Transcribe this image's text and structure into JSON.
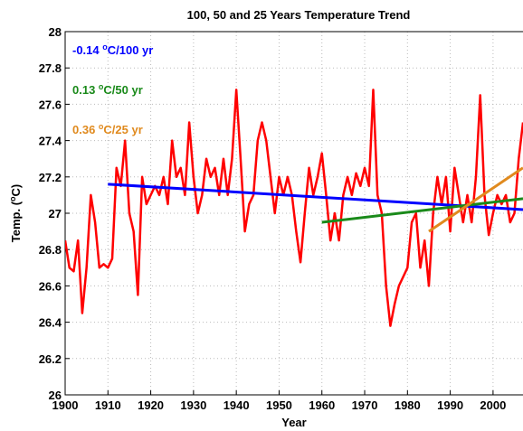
{
  "chart_data": {
    "type": "line",
    "title": "100, 50 and 25 Years Temperature Trend",
    "xlabel": "Year",
    "ylabel": {
      "pre": "Temp. (",
      "sup": "o",
      "post": "C)"
    },
    "xlim": [
      1900,
      2007
    ],
    "ylim": [
      26,
      28
    ],
    "xticks": [
      1900,
      1910,
      1920,
      1930,
      1940,
      1950,
      1960,
      1970,
      1980,
      1990,
      2000
    ],
    "yticks": [
      26,
      26.2,
      26.4,
      26.6,
      26.8,
      27,
      27.2,
      27.4,
      27.6,
      27.8,
      28
    ],
    "grid": true,
    "series": [
      {
        "color": "#ff0000",
        "x": [
          1900,
          1901,
          1902,
          1903,
          1904,
          1905,
          1906,
          1907,
          1908,
          1909,
          1910,
          1911,
          1912,
          1913,
          1914,
          1915,
          1916,
          1917,
          1918,
          1919,
          1920,
          1921,
          1922,
          1923,
          1924,
          1925,
          1926,
          1927,
          1928,
          1929,
          1930,
          1931,
          1932,
          1933,
          1934,
          1935,
          1936,
          1937,
          1938,
          1939,
          1940,
          1941,
          1942,
          1943,
          1944,
          1945,
          1946,
          1947,
          1948,
          1949,
          1950,
          1951,
          1952,
          1953,
          1954,
          1955,
          1956,
          1957,
          1958,
          1959,
          1960,
          1961,
          1962,
          1963,
          1964,
          1965,
          1966,
          1967,
          1968,
          1969,
          1970,
          1971,
          1972,
          1973,
          1974,
          1975,
          1976,
          1977,
          1978,
          1979,
          1980,
          1981,
          1982,
          1983,
          1984,
          1985,
          1986,
          1987,
          1988,
          1989,
          1990,
          1991,
          1992,
          1993,
          1994,
          1995,
          1996,
          1997,
          1998,
          1999,
          2000,
          2001,
          2002,
          2003,
          2004,
          2005,
          2006,
          2007
        ],
        "values": [
          26.85,
          26.7,
          26.68,
          26.85,
          26.45,
          26.7,
          27.1,
          26.95,
          26.7,
          26.72,
          26.7,
          26.75,
          27.25,
          27.15,
          27.4,
          27.0,
          26.9,
          26.55,
          27.2,
          27.05,
          27.1,
          27.15,
          27.1,
          27.2,
          27.05,
          27.4,
          27.2,
          27.25,
          27.1,
          27.5,
          27.2,
          27.0,
          27.1,
          27.3,
          27.2,
          27.25,
          27.1,
          27.3,
          27.1,
          27.3,
          27.68,
          27.3,
          26.9,
          27.05,
          27.1,
          27.4,
          27.5,
          27.4,
          27.2,
          27.0,
          27.2,
          27.1,
          27.2,
          27.1,
          26.9,
          26.73,
          27.0,
          27.25,
          27.1,
          27.2,
          27.33,
          27.1,
          26.85,
          27.0,
          26.85,
          27.1,
          27.2,
          27.1,
          27.22,
          27.15,
          27.25,
          27.15,
          27.68,
          27.1,
          27.0,
          26.6,
          26.38,
          26.5,
          26.6,
          26.65,
          26.7,
          26.95,
          27.0,
          26.7,
          26.85,
          26.6,
          27.0,
          27.2,
          27.05,
          27.2,
          26.9,
          27.25,
          27.1,
          26.95,
          27.1,
          26.95,
          27.2,
          27.65,
          27.1,
          26.88,
          27.0,
          27.1,
          27.05,
          27.1,
          26.95,
          27.0,
          27.3,
          27.5
        ]
      },
      {
        "color": "#0000ff",
        "x": [
          1910,
          2007
        ],
        "values": [
          27.16,
          27.02
        ],
        "label": {
          "pre": "-0.14 ",
          "sup": "o",
          "post": "C/100 yr"
        }
      },
      {
        "color": "#1a8a1a",
        "x": [
          1960,
          2007
        ],
        "values": [
          26.95,
          27.08
        ],
        "label": {
          "pre": "0.13 ",
          "sup": "o",
          "post": "C/50 yr"
        }
      },
      {
        "color": "#e08a1e",
        "x": [
          1985,
          2007
        ],
        "values": [
          26.9,
          27.25
        ],
        "label": {
          "pre": "0.36 ",
          "sup": "o",
          "post": "C/25 yr"
        }
      }
    ]
  }
}
